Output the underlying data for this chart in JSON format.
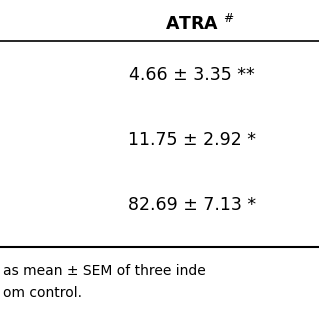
{
  "header": "ATRA $^{\\#}$",
  "rows": [
    "4.66 ± 3.35 **",
    "11.75 ± 2.92 *",
    "82.69 ± 7.13 *"
  ],
  "footer_lines": [
    "as mean ± SEM of three inde",
    "om control."
  ],
  "bg_color": "#ffffff",
  "text_color": "#000000",
  "header_fontsize": 12.5,
  "data_fontsize": 12.5,
  "footer_fontsize": 10.0
}
